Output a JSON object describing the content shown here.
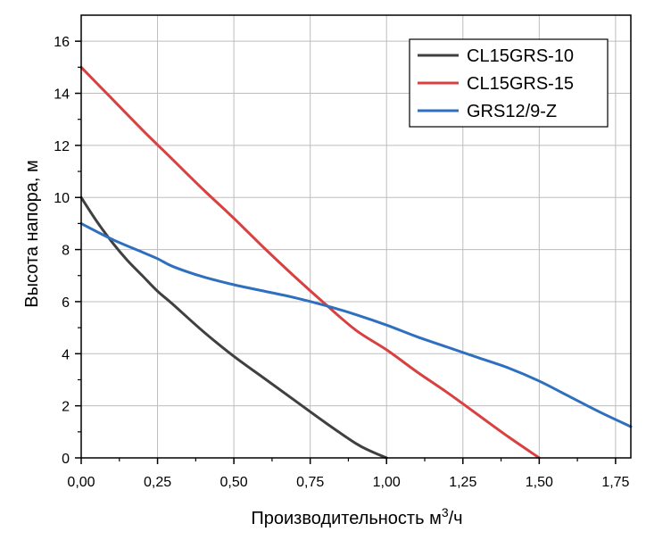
{
  "chart_data": {
    "type": "line",
    "title": "",
    "xlabel": "Производительность м",
    "xlabel_sup": "3",
    "xlabel_suffix": "/ч",
    "ylabel": "Высота напора, м",
    "xlim": [
      0,
      1.8
    ],
    "ylim": [
      0,
      17
    ],
    "x_ticks": [
      0,
      0.25,
      0.5,
      0.75,
      1.0,
      1.25,
      1.5,
      1.75
    ],
    "x_tick_labels": [
      "0,00",
      "0,25",
      "0,50",
      "0,75",
      "1,00",
      "1,25",
      "1,50",
      "1,75"
    ],
    "y_ticks": [
      0,
      2,
      4,
      6,
      8,
      10,
      12,
      14,
      16
    ],
    "y_tick_labels": [
      "0",
      "2",
      "4",
      "6",
      "8",
      "10",
      "12",
      "14",
      "16"
    ],
    "grid": true,
    "legend_position": "top-right",
    "series": [
      {
        "name": "CL15GRS-10",
        "color": "#404040",
        "x": [
          0,
          0.05,
          0.1,
          0.15,
          0.2,
          0.25,
          0.3,
          0.4,
          0.5,
          0.6,
          0.7,
          0.8,
          0.9,
          0.95,
          1.0
        ],
        "y": [
          10.0,
          9.1,
          8.3,
          7.6,
          7.0,
          6.4,
          5.9,
          4.85,
          3.9,
          3.05,
          2.2,
          1.35,
          0.55,
          0.25,
          0.0
        ]
      },
      {
        "name": "CL15GRS-15",
        "color": "#d94040",
        "x": [
          0,
          0.1,
          0.2,
          0.3,
          0.4,
          0.5,
          0.6,
          0.7,
          0.8,
          0.9,
          1.0,
          1.1,
          1.2,
          1.3,
          1.4,
          1.5
        ],
        "y": [
          15.0,
          13.8,
          12.6,
          11.45,
          10.3,
          9.2,
          8.05,
          6.95,
          5.9,
          4.9,
          4.15,
          3.3,
          2.5,
          1.65,
          0.8,
          0.0
        ]
      },
      {
        "name": "GRS12/9-Z",
        "color": "#2f6fc0",
        "x": [
          0,
          0.1,
          0.2,
          0.25,
          0.3,
          0.4,
          0.5,
          0.6,
          0.7,
          0.8,
          0.9,
          1.0,
          1.1,
          1.2,
          1.3,
          1.4,
          1.5,
          1.6,
          1.7,
          1.8
        ],
        "y": [
          9.0,
          8.4,
          7.9,
          7.65,
          7.35,
          6.95,
          6.65,
          6.4,
          6.15,
          5.85,
          5.5,
          5.1,
          4.65,
          4.25,
          3.85,
          3.45,
          2.95,
          2.35,
          1.75,
          1.2
        ]
      }
    ]
  }
}
